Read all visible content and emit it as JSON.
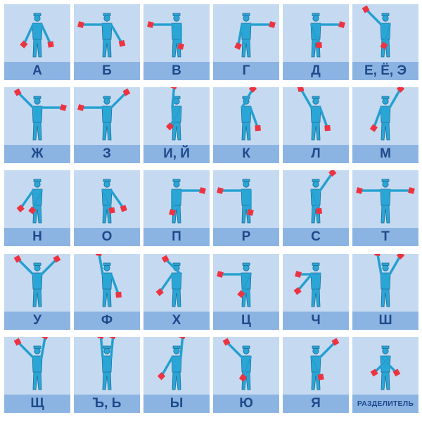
{
  "colors": {
    "cell_bg": "#c5daf1",
    "label_bg": "#8cb4e2",
    "label_text": "#1e4a8c",
    "figure": "#2aa6d6",
    "figure_outline": "#1b6f9a",
    "flag": "#ee3340"
  },
  "cells": [
    {
      "label": "А",
      "icon": "semaphore-figure",
      "pose": "a"
    },
    {
      "label": "Б",
      "icon": "semaphore-figure",
      "pose": "b"
    },
    {
      "label": "В",
      "icon": "semaphore-figure",
      "pose": "v"
    },
    {
      "label": "Г",
      "icon": "semaphore-figure",
      "pose": "g"
    },
    {
      "label": "Д",
      "icon": "semaphore-figure",
      "pose": "d"
    },
    {
      "label": "Е, Ё, Э",
      "icon": "semaphore-figure",
      "pose": "e"
    },
    {
      "label": "Ж",
      "icon": "semaphore-figure",
      "pose": "zh"
    },
    {
      "label": "З",
      "icon": "semaphore-figure",
      "pose": "z"
    },
    {
      "label": "И, Й",
      "icon": "semaphore-figure",
      "pose": "i"
    },
    {
      "label": "К",
      "icon": "semaphore-figure",
      "pose": "k"
    },
    {
      "label": "Л",
      "icon": "semaphore-figure",
      "pose": "l"
    },
    {
      "label": "М",
      "icon": "semaphore-figure",
      "pose": "m"
    },
    {
      "label": "Н",
      "icon": "semaphore-figure",
      "pose": "n"
    },
    {
      "label": "О",
      "icon": "semaphore-figure",
      "pose": "o"
    },
    {
      "label": "П",
      "icon": "semaphore-figure",
      "pose": "p"
    },
    {
      "label": "Р",
      "icon": "semaphore-figure",
      "pose": "r"
    },
    {
      "label": "С",
      "icon": "semaphore-figure",
      "pose": "s"
    },
    {
      "label": "Т",
      "icon": "semaphore-figure",
      "pose": "t"
    },
    {
      "label": "У",
      "icon": "semaphore-figure",
      "pose": "u"
    },
    {
      "label": "Ф",
      "icon": "semaphore-figure",
      "pose": "f"
    },
    {
      "label": "Х",
      "icon": "semaphore-figure",
      "pose": "h"
    },
    {
      "label": "Ц",
      "icon": "semaphore-figure",
      "pose": "ts"
    },
    {
      "label": "Ч",
      "icon": "semaphore-figure",
      "pose": "ch"
    },
    {
      "label": "Ш",
      "icon": "semaphore-figure",
      "pose": "sh"
    },
    {
      "label": "Щ",
      "icon": "semaphore-figure",
      "pose": "shch"
    },
    {
      "label": "Ъ, Ь",
      "icon": "semaphore-figure",
      "pose": "hard"
    },
    {
      "label": "Ы",
      "icon": "semaphore-figure",
      "pose": "y"
    },
    {
      "label": "Ю",
      "icon": "semaphore-figure",
      "pose": "yu"
    },
    {
      "label": "Я",
      "icon": "semaphore-figure",
      "pose": "ya"
    },
    {
      "label": "РАЗДЕЛИТЕЛЬ",
      "icon": "semaphore-figure",
      "pose": "sep"
    }
  ]
}
